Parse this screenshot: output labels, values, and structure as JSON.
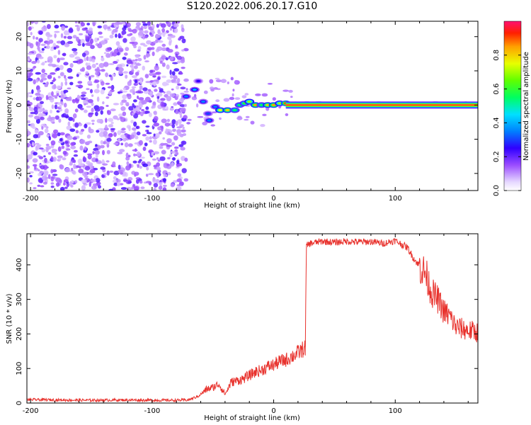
{
  "title": "S120.2022.006.20.17.G10",
  "chart_data": [
    {
      "type": "heatmap",
      "xlabel": "Height of straight line (km)",
      "ylabel": "Frequency (Hz)",
      "xlim": [
        -203,
        168
      ],
      "ylim": [
        -25,
        24.5
      ],
      "x_ticks": [
        -200,
        -100,
        0,
        100
      ],
      "y_ticks": [
        20,
        10,
        0,
        -10,
        -20
      ],
      "noise_region_x": [
        -203,
        -72
      ],
      "signal_segments": [
        {
          "x": -72,
          "y": 2.5,
          "amp": 0.35
        },
        {
          "x": -65,
          "y": 4.5,
          "amp": 0.4
        },
        {
          "x": -62,
          "y": 7,
          "amp": 0.25
        },
        {
          "x": -58,
          "y": 1,
          "amp": 0.35
        },
        {
          "x": -54,
          "y": -2.5,
          "amp": 0.3
        },
        {
          "x": -53,
          "y": -4.5,
          "amp": 0.35
        },
        {
          "x": -48,
          "y": -0.5,
          "amp": 0.35
        },
        {
          "x": -44,
          "y": -1.5,
          "amp": 0.75
        },
        {
          "x": -38,
          "y": -1.5,
          "amp": 0.8
        },
        {
          "x": -32,
          "y": -1.5,
          "amp": 0.55
        },
        {
          "x": -28,
          "y": 0.0,
          "amp": 0.55
        },
        {
          "x": -24,
          "y": 0.5,
          "amp": 0.6
        },
        {
          "x": -20,
          "y": 1.0,
          "amp": 0.7
        },
        {
          "x": -15,
          "y": 0.0,
          "amp": 0.85
        },
        {
          "x": -10,
          "y": 0.0,
          "amp": 0.55
        },
        {
          "x": -5,
          "y": 0.0,
          "amp": 0.8
        },
        {
          "x": 0,
          "y": 0.0,
          "amp": 0.85
        },
        {
          "x": 5,
          "y": 0.5,
          "amp": 0.7
        },
        {
          "x": 10,
          "y": 0.5,
          "amp": 0.9
        }
      ],
      "carrier": {
        "x_start": 10,
        "x_end": 168,
        "freq": 0.0,
        "amp": 0.95
      },
      "colorbar": {
        "label": "Normalized spectral amplitude",
        "range": [
          0,
          1
        ],
        "ticks": [
          0.0,
          0.2,
          0.4,
          0.6,
          0.8
        ]
      }
    },
    {
      "type": "line",
      "xlabel": "Height of straight line (km)",
      "ylabel": "SNR (10 * v/v)",
      "xlim": [
        -203,
        168
      ],
      "ylim": [
        0,
        490
      ],
      "x_ticks": [
        -200,
        -100,
        0,
        100
      ],
      "y_ticks": [
        0,
        100,
        200,
        300,
        400
      ],
      "color": "#e8322d",
      "series": [
        {
          "x": [
            -203,
            -180,
            -150,
            -120,
            -100,
            -80,
            -70,
            -62,
            -55,
            -50,
            -45,
            -40,
            -35,
            -30,
            -25,
            -20,
            -15,
            -10,
            -5,
            0,
            5,
            10,
            15,
            20,
            25,
            26,
            27,
            30,
            40,
            50,
            60,
            70,
            80,
            90,
            100,
            105,
            110,
            115,
            120,
            125,
            130,
            135,
            140,
            145,
            150,
            155,
            160,
            168
          ],
          "y": [
            10,
            9,
            8,
            9,
            8,
            8,
            9,
            20,
            40,
            45,
            55,
            25,
            60,
            65,
            70,
            80,
            90,
            95,
            105,
            110,
            120,
            125,
            135,
            145,
            158,
            160,
            455,
            462,
            468,
            465,
            468,
            466,
            467,
            462,
            470,
            460,
            450,
            420,
            395,
            375,
            320,
            300,
            265,
            250,
            220,
            215,
            210,
            205
          ]
        }
      ]
    }
  ]
}
